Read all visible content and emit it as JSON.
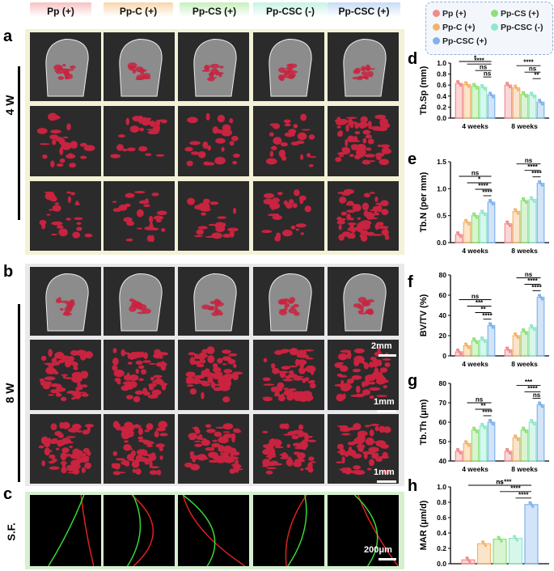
{
  "colors": {
    "pp": "#f28b8b",
    "ppc": "#f4b36b",
    "ppcs": "#8fe07a",
    "ppcsc_neg": "#8fe8c8",
    "ppcsc_pos": "#7fb2ec",
    "tile_bg": "#2b2b2b",
    "bone": "#d8d8d8",
    "tissue": "#c8233f"
  },
  "headers": [
    "Pp (+)",
    "Pp-C (+)",
    "Pp-CS (+)",
    "Pp-CSC (-)",
    "Pp-CSC (+)"
  ],
  "panel_labels": {
    "a": "a",
    "b": "b",
    "c": "c",
    "d": "d",
    "e": "e",
    "f": "f",
    "g": "g",
    "h": "h"
  },
  "row_labels": {
    "w4": "4 W",
    "w8": "8 W",
    "sf": "S.F."
  },
  "scalebars": {
    "b_row1": "2mm",
    "b_row2": "1mm",
    "b_row3": "1mm",
    "c": "200μm"
  },
  "legend": [
    {
      "label": "Pp (+)",
      "color": "#f28b8b"
    },
    {
      "label": "Pp-CS  (+)",
      "color": "#8fe07a"
    },
    {
      "label": "Pp-C (+)",
      "color": "#f4b36b"
    },
    {
      "label": "Pp-CSC (-)",
      "color": "#8fe8c8"
    },
    {
      "label": "Pp-CSC (+)",
      "color": "#7fb2ec"
    }
  ],
  "chart_data": [
    {
      "id": "d",
      "type": "bar",
      "ylabel": "Tb.Sp (mm)",
      "categories": [
        "4 weeks",
        "8 weeks"
      ],
      "ylim": [
        0,
        1.0
      ],
      "yticks": [
        0.0,
        0.2,
        0.4,
        0.6,
        0.8,
        1.0
      ],
      "ytick_labels": [
        "0.0",
        "0.2",
        "0.4",
        "0.6",
        "0.8",
        "1.0"
      ],
      "series": [
        {
          "name": "Pp (+)",
          "values": [
            0.63,
            0.6
          ]
        },
        {
          "name": "Pp-C (+)",
          "values": [
            0.61,
            0.55
          ]
        },
        {
          "name": "Pp-CS (+)",
          "values": [
            0.58,
            0.43
          ]
        },
        {
          "name": "Pp-CSC (-)",
          "values": [
            0.56,
            0.42
          ]
        },
        {
          "name": "Pp-CSC (+)",
          "values": [
            0.42,
            0.29
          ]
        }
      ],
      "annotations": [
        "ns",
        "ns",
        "****",
        "*",
        "**",
        "ns",
        "****"
      ]
    },
    {
      "id": "e",
      "type": "bar",
      "ylabel": "Tb.N (per mm)",
      "categories": [
        "4 weeks",
        "8 weeks"
      ],
      "ylim": [
        0,
        1.5
      ],
      "yticks": [
        0.0,
        0.5,
        1.0,
        1.5
      ],
      "ytick_labels": [
        "0.0",
        "0.5",
        "1.0",
        "1.5"
      ],
      "series": [
        {
          "name": "Pp (+)",
          "values": [
            0.15,
            0.35
          ]
        },
        {
          "name": "Pp-C (+)",
          "values": [
            0.38,
            0.58
          ]
        },
        {
          "name": "Pp-CS (+)",
          "values": [
            0.5,
            0.78
          ]
        },
        {
          "name": "Pp-CSC (-)",
          "values": [
            0.55,
            0.8
          ]
        },
        {
          "name": "Pp-CSC (+)",
          "values": [
            0.75,
            1.1
          ]
        }
      ],
      "annotations": [
        "****",
        "****",
        "*",
        "ns",
        "****",
        "****",
        "ns"
      ]
    },
    {
      "id": "f",
      "type": "bar",
      "ylabel": "BV/TV (%)",
      "categories": [
        "4 weeks",
        "8 weeks"
      ],
      "ylim": [
        0,
        80
      ],
      "yticks": [
        0,
        20,
        40,
        60,
        80
      ],
      "ytick_labels": [
        "0",
        "20",
        "40",
        "60",
        "80"
      ],
      "series": [
        {
          "name": "Pp (+)",
          "values": [
            4,
            6
          ]
        },
        {
          "name": "Pp-C (+)",
          "values": [
            10,
            20
          ]
        },
        {
          "name": "Pp-CS (+)",
          "values": [
            15,
            24
          ]
        },
        {
          "name": "Pp-CSC (-)",
          "values": [
            16,
            28
          ]
        },
        {
          "name": "Pp-CSC (+)",
          "values": [
            30,
            58
          ]
        }
      ],
      "annotations": [
        "****",
        "**",
        "***",
        "ns",
        "****",
        "****",
        "ns"
      ]
    },
    {
      "id": "g",
      "type": "bar",
      "ylabel": "Tb.Th (μm)",
      "categories": [
        "4 weeks",
        "8 weeks"
      ],
      "ylim": [
        40,
        80
      ],
      "yticks": [
        40,
        50,
        60,
        70,
        80
      ],
      "ytick_labels": [
        "40",
        "50",
        "60",
        "70",
        "80"
      ],
      "series": [
        {
          "name": "Pp (+)",
          "values": [
            45,
            45
          ]
        },
        {
          "name": "Pp-C (+)",
          "values": [
            49,
            52
          ]
        },
        {
          "name": "Pp-CS (+)",
          "values": [
            56,
            56
          ]
        },
        {
          "name": "Pp-CSC (-)",
          "values": [
            58,
            60
          ]
        },
        {
          "name": "Pp-CSC (+)",
          "values": [
            60,
            69
          ]
        }
      ],
      "annotations": [
        "****",
        "**",
        "ns",
        "ns",
        "****",
        "***"
      ]
    },
    {
      "id": "h",
      "type": "bar",
      "ylabel": "MAR (μm/d)",
      "categories": [
        ""
      ],
      "ylim": [
        0,
        1.0
      ],
      "yticks": [
        0.0,
        0.2,
        0.4,
        0.6,
        0.8,
        1.0
      ],
      "ytick_labels": [
        "0.0",
        "0.2",
        "0.4",
        "0.6",
        "0.8",
        "1.0"
      ],
      "series": [
        {
          "name": "Pp (+)",
          "values": [
            0.05
          ]
        },
        {
          "name": "Pp-C (+)",
          "values": [
            0.26
          ]
        },
        {
          "name": "Pp-CS (+)",
          "values": [
            0.32
          ]
        },
        {
          "name": "Pp-CSC (-)",
          "values": [
            0.33
          ]
        },
        {
          "name": "Pp-CSC (+)",
          "values": [
            0.77
          ]
        }
      ],
      "annotations": [
        "****",
        "****",
        "***",
        "ns",
        "ns"
      ]
    }
  ]
}
